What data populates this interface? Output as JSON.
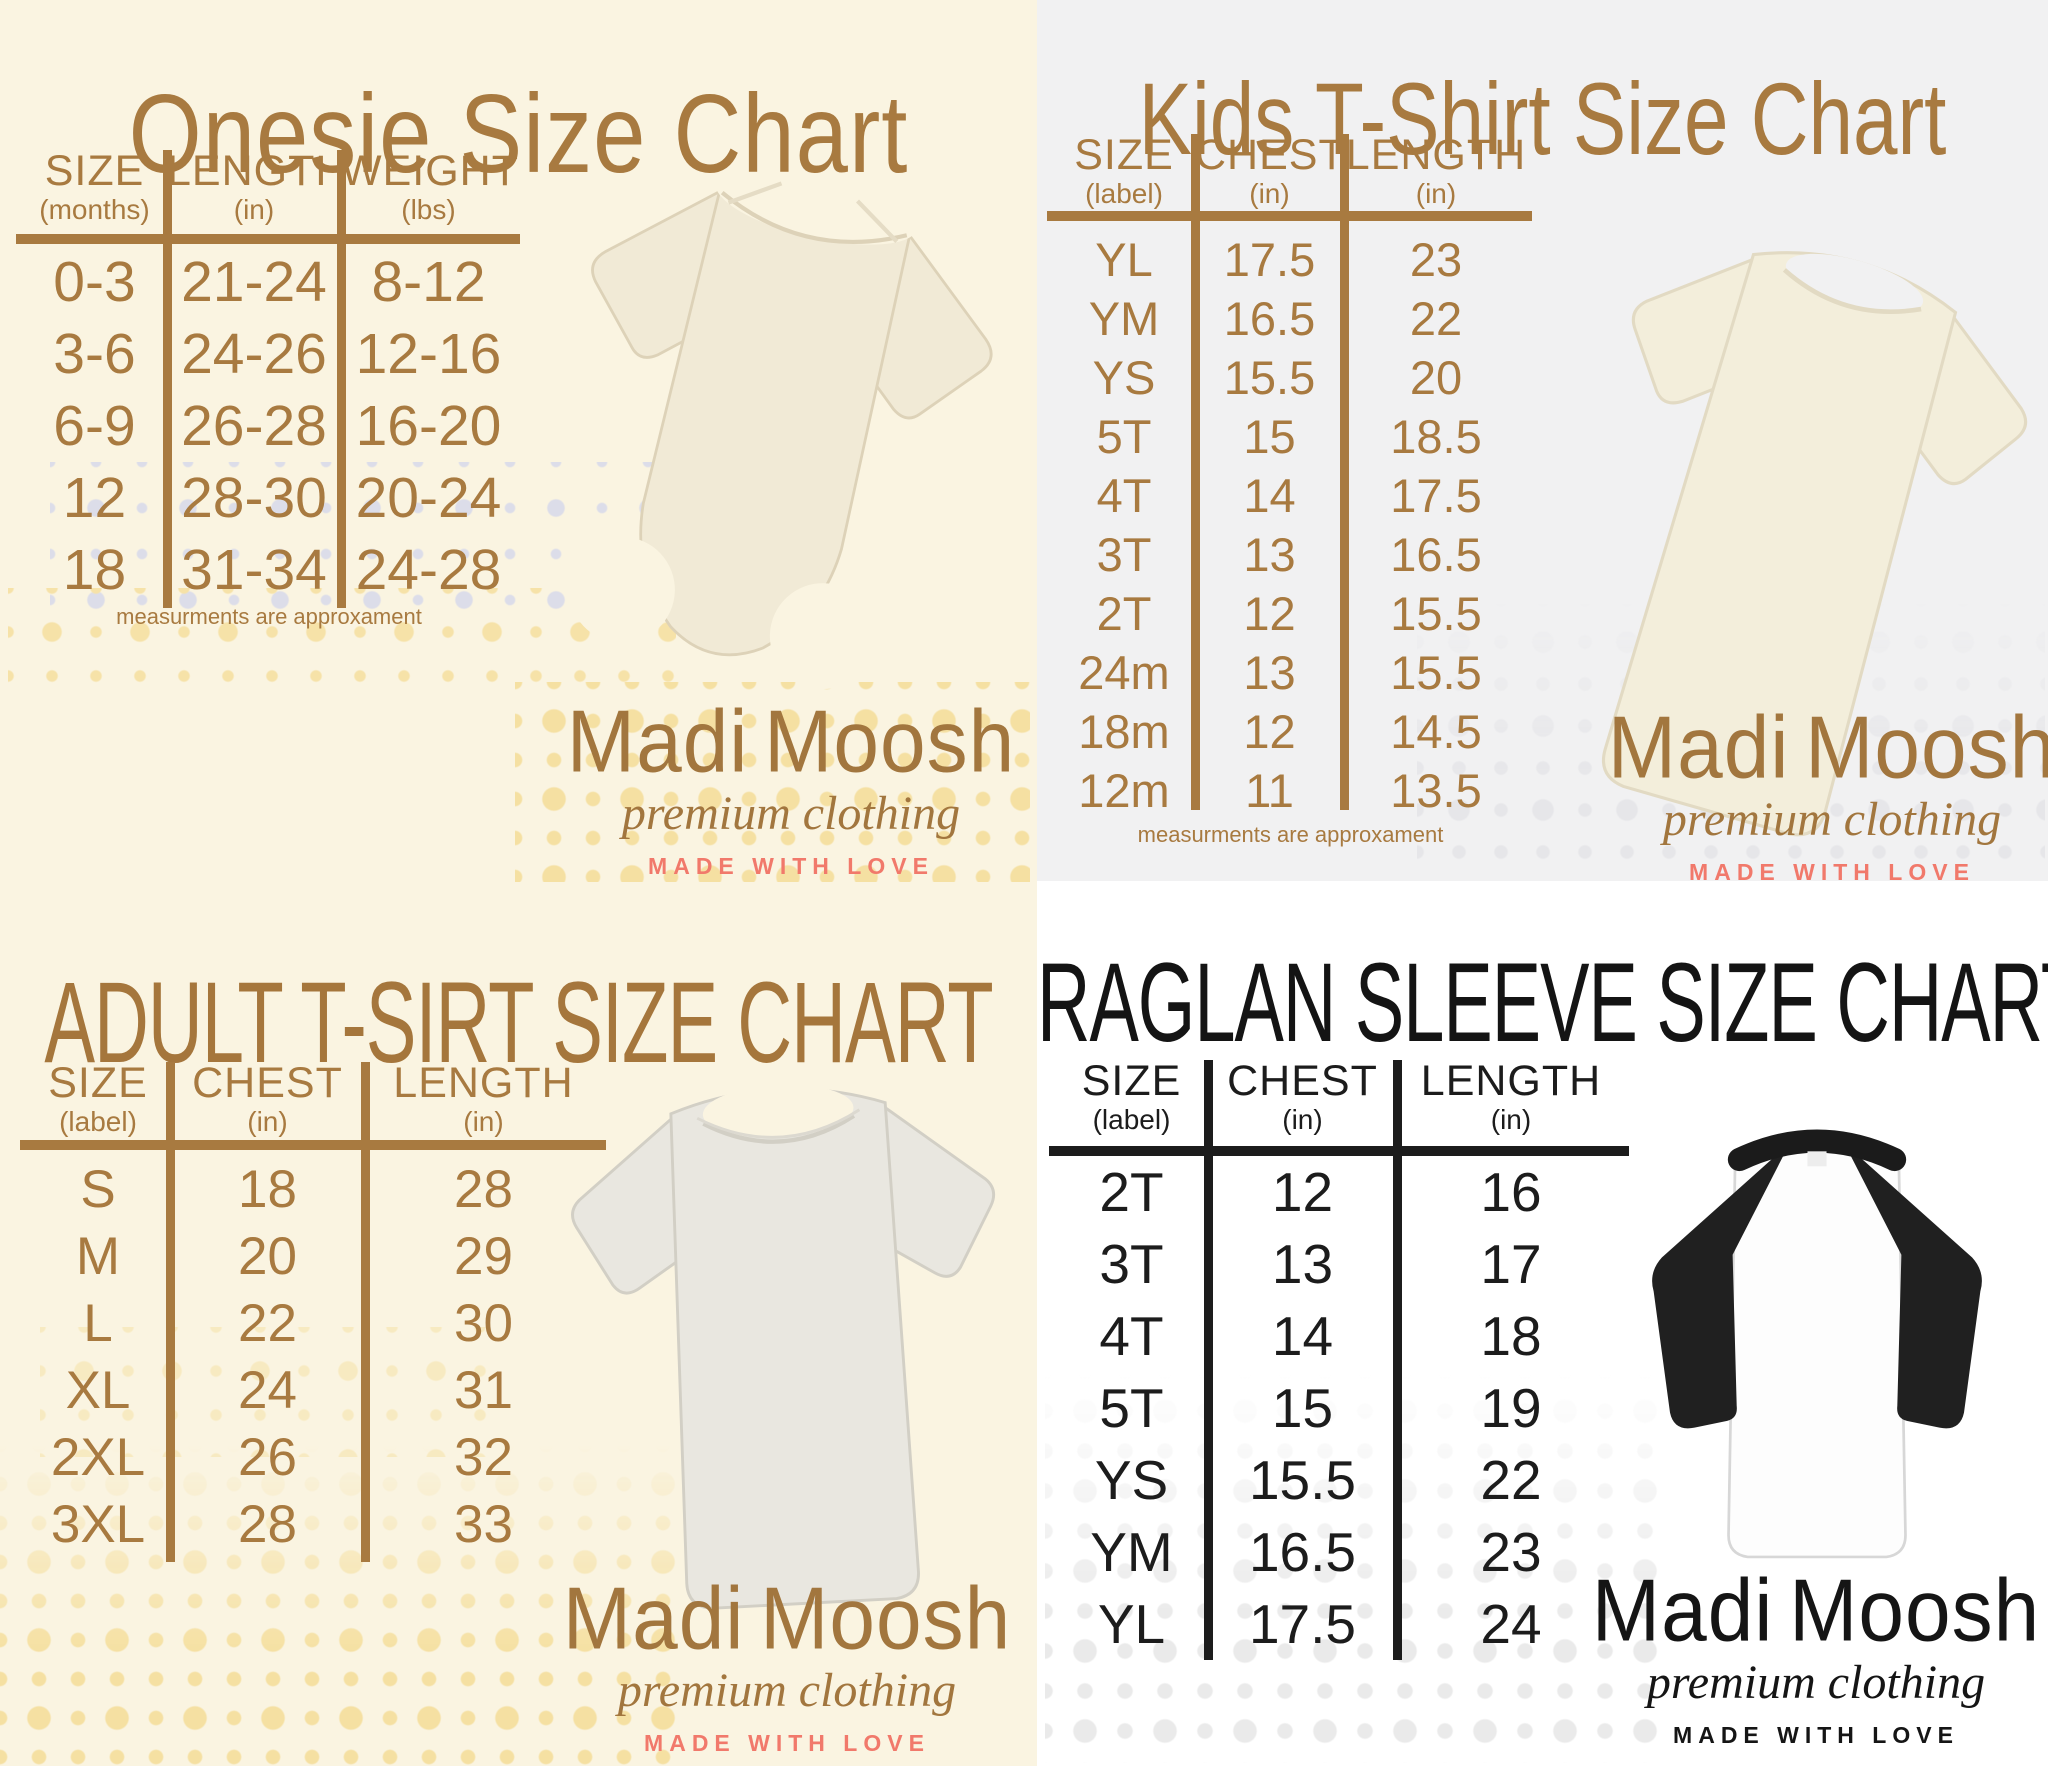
{
  "brand": {
    "name": "Madi Moosh",
    "tagline": "premium clothing",
    "motto": "MADE WITH LOVE"
  },
  "colors": {
    "brand_brown": "#a87a40",
    "accent_coral": "#f1796b",
    "ink_black": "#1c1c1c",
    "cream_background": "#faf4e1",
    "gray_background": "#f1f1f2",
    "white_background": "#ffffff"
  },
  "chart_data": [
    {
      "type": "table",
      "title": "Onesie Size Chart",
      "garment": "baby-onesie",
      "footnote": "measurments are approxament",
      "columns": [
        {
          "label": "SIZE",
          "unit": "(months)"
        },
        {
          "label": "LENGTH",
          "unit": "(in)"
        },
        {
          "label": "WEIGHT",
          "unit": "(lbs)"
        }
      ],
      "rows": [
        [
          "0-3",
          "21-24",
          "8-12"
        ],
        [
          "3-6",
          "24-26",
          "12-16"
        ],
        [
          "6-9",
          "26-28",
          "16-20"
        ],
        [
          "12",
          "28-30",
          "20-24"
        ],
        [
          "18",
          "31-34",
          "24-28"
        ]
      ]
    },
    {
      "type": "table",
      "title": "Kids T-Shirt Size Chart",
      "garment": "kids-tshirt",
      "footnote": "measurments are approxament",
      "columns": [
        {
          "label": "SIZE",
          "unit": "(label)"
        },
        {
          "label": "CHEST",
          "unit": "(in)"
        },
        {
          "label": "LENGTH",
          "unit": "(in)"
        }
      ],
      "rows": [
        [
          "YL",
          "17.5",
          "23"
        ],
        [
          "YM",
          "16.5",
          "22"
        ],
        [
          "YS",
          "15.5",
          "20"
        ],
        [
          "5T",
          "15",
          "18.5"
        ],
        [
          "4T",
          "14",
          "17.5"
        ],
        [
          "3T",
          "13",
          "16.5"
        ],
        [
          "2T",
          "12",
          "15.5"
        ],
        [
          "24m",
          "13",
          "15.5"
        ],
        [
          "18m",
          "12",
          "14.5"
        ],
        [
          "12m",
          "11",
          "13.5"
        ]
      ]
    },
    {
      "type": "table",
      "title": "ADULT T-SIRT SIZE CHART",
      "garment": "adult-tshirt",
      "columns": [
        {
          "label": "SIZE",
          "unit": "(label)"
        },
        {
          "label": "CHEST",
          "unit": "(in)"
        },
        {
          "label": "LENGTH",
          "unit": "(in)"
        }
      ],
      "rows": [
        [
          "S",
          "18",
          "28"
        ],
        [
          "M",
          "20",
          "29"
        ],
        [
          "L",
          "22",
          "30"
        ],
        [
          "XL",
          "24",
          "31"
        ],
        [
          "2XL",
          "26",
          "32"
        ],
        [
          "3XL",
          "28",
          "33"
        ]
      ]
    },
    {
      "type": "table",
      "title": "RAGLAN SLEEVE SIZE CHART",
      "garment": "raglan-sleeve-shirt",
      "columns": [
        {
          "label": "SIZE",
          "unit": "(label)"
        },
        {
          "label": "CHEST",
          "unit": "(in)"
        },
        {
          "label": "LENGTH",
          "unit": "(in)"
        }
      ],
      "rows": [
        [
          "2T",
          "12",
          "16"
        ],
        [
          "3T",
          "13",
          "17"
        ],
        [
          "4T",
          "14",
          "18"
        ],
        [
          "5T",
          "15",
          "19"
        ],
        [
          "YS",
          "15.5",
          "22"
        ],
        [
          "YM",
          "16.5",
          "23"
        ],
        [
          "YL",
          "17.5",
          "24"
        ]
      ]
    }
  ]
}
